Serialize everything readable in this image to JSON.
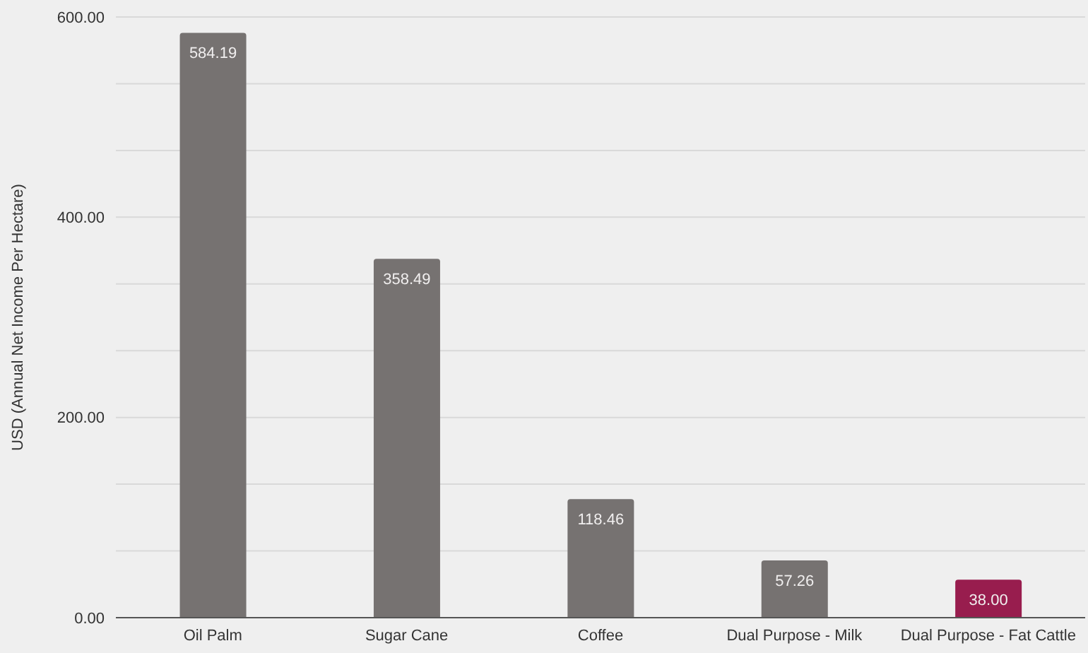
{
  "chart_data": {
    "type": "bar",
    "ylabel": "USD (Annual Net Income Per Hectare)",
    "categories": [
      "Oil Palm",
      "Sugar Cane",
      "Coffee",
      "Dual Purpose - Milk",
      "Dual Purpose - Fat Cattle"
    ],
    "values": [
      584.19,
      358.49,
      118.46,
      57.26,
      38
    ],
    "value_labels": [
      "584.19",
      "358.49",
      "118.46",
      "57.26",
      "38.00"
    ],
    "colors": [
      "#767271",
      "#767271",
      "#767271",
      "#767271",
      "#981d4e"
    ],
    "ylim": [
      0,
      600
    ],
    "yticks": [
      {
        "value": 0,
        "label": "0.00"
      },
      {
        "value": 66.67,
        "label": null
      },
      {
        "value": 133.33,
        "label": null
      },
      {
        "value": 200,
        "label": "200.00"
      },
      {
        "value": 266.67,
        "label": null
      },
      {
        "value": 333.33,
        "label": null
      },
      {
        "value": 400,
        "label": "400.00"
      },
      {
        "value": 466.67,
        "label": null
      },
      {
        "value": 533.33,
        "label": null
      },
      {
        "value": 600,
        "label": "600.00"
      }
    ],
    "grid": "y"
  }
}
